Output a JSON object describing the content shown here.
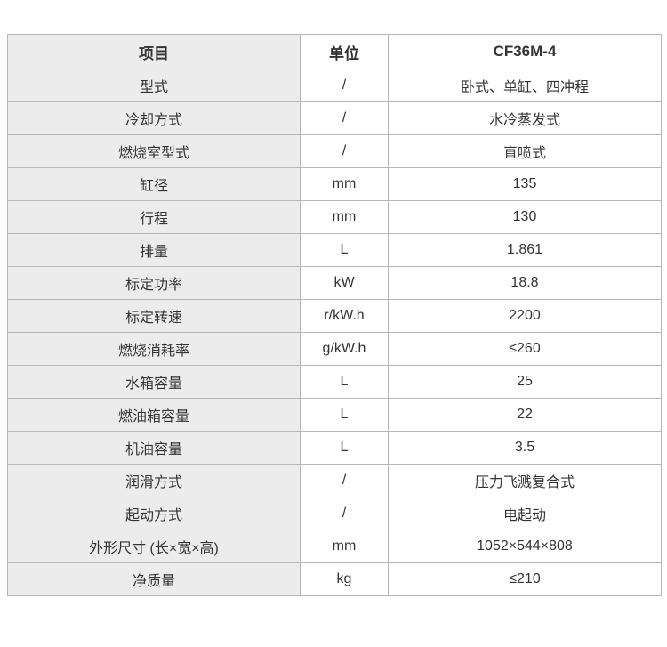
{
  "table": {
    "headers": {
      "item": "项目",
      "unit": "单位",
      "model": "CF36M-4"
    },
    "rows": [
      {
        "item": "型式",
        "unit": "/",
        "value": "卧式、单缸、四冲程"
      },
      {
        "item": "冷却方式",
        "unit": "/",
        "value": "水冷蒸发式"
      },
      {
        "item": "燃烧室型式",
        "unit": "/",
        "value": "直喷式"
      },
      {
        "item": "缸径",
        "unit": "mm",
        "value": "135"
      },
      {
        "item": "行程",
        "unit": "mm",
        "value": "130"
      },
      {
        "item": "排量",
        "unit": "L",
        "value": "1.861"
      },
      {
        "item": "标定功率",
        "unit": "kW",
        "value": "18.8"
      },
      {
        "item": "标定转速",
        "unit": "r/kW.h",
        "value": "2200"
      },
      {
        "item": "燃烧消耗率",
        "unit": "g/kW.h",
        "value": "≤260"
      },
      {
        "item": "水箱容量",
        "unit": "L",
        "value": "25"
      },
      {
        "item": "燃油箱容量",
        "unit": "L",
        "value": "22"
      },
      {
        "item": "机油容量",
        "unit": "L",
        "value": "3.5"
      },
      {
        "item": "润滑方式",
        "unit": "/",
        "value": "压力飞溅复合式"
      },
      {
        "item": "起动方式",
        "unit": "/",
        "value": "电起动"
      },
      {
        "item": "外形尺寸 (长×宽×高)",
        "unit": "mm",
        "value": "1052×544×808"
      },
      {
        "item": "净质量",
        "unit": "kg",
        "value": "≤210"
      }
    ]
  },
  "colors": {
    "border": "#b7b7b7",
    "label_background": "#ececec",
    "cell_background": "#ffffff",
    "text": "#333333",
    "page_background": "#ffffff"
  },
  "chart_data": {
    "type": "table",
    "title": "CF36M-4",
    "columns": [
      "项目",
      "单位",
      "CF36M-4"
    ],
    "rows": [
      [
        "型式",
        "/",
        "卧式、单缸、四冲程"
      ],
      [
        "冷却方式",
        "/",
        "水冷蒸发式"
      ],
      [
        "燃烧室型式",
        "/",
        "直喷式"
      ],
      [
        "缸径",
        "mm",
        "135"
      ],
      [
        "行程",
        "mm",
        "130"
      ],
      [
        "排量",
        "L",
        "1.861"
      ],
      [
        "标定功率",
        "kW",
        "18.8"
      ],
      [
        "标定转速",
        "r/kW.h",
        "2200"
      ],
      [
        "燃烧消耗率",
        "g/kW.h",
        "≤260"
      ],
      [
        "水箱容量",
        "L",
        "25"
      ],
      [
        "燃油箱容量",
        "L",
        "22"
      ],
      [
        "机油容量",
        "L",
        "3.5"
      ],
      [
        "润滑方式",
        "/",
        "压力飞溅复合式"
      ],
      [
        "起动方式",
        "/",
        "电起动"
      ],
      [
        "外形尺寸 (长×宽×高)",
        "mm",
        "1052×544×808"
      ],
      [
        "净质量",
        "kg",
        "≤210"
      ]
    ]
  }
}
